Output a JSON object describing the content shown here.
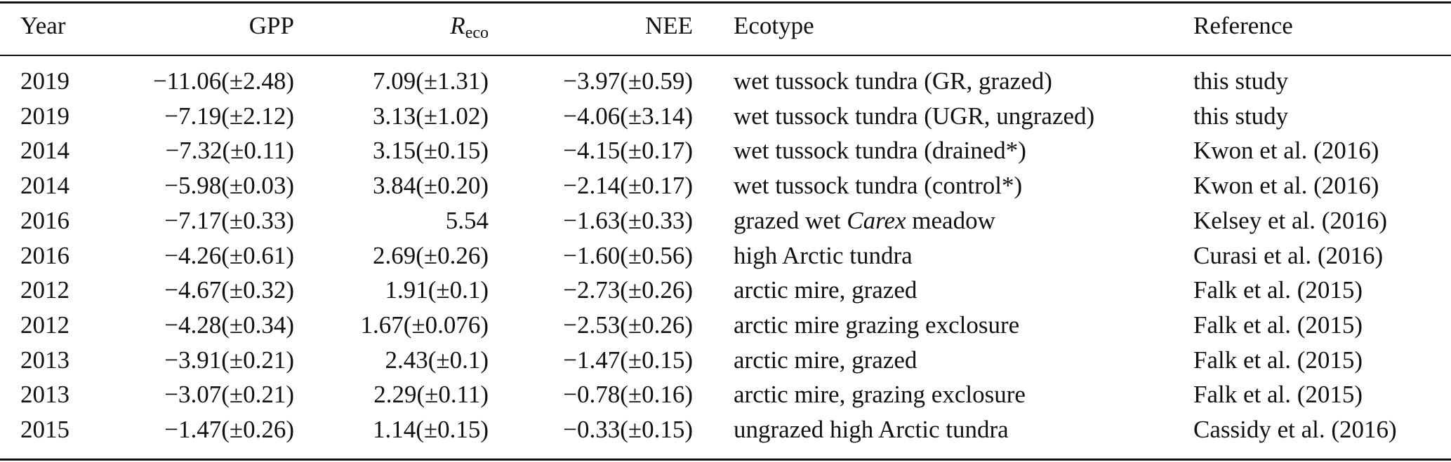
{
  "table": {
    "header": [
      "Year",
      "GPP",
      {
        "italic": "R",
        "sub": "eco"
      },
      "NEE",
      "Ecotype",
      "Reference"
    ],
    "rows": [
      [
        "2019",
        "−11.06(±2.48)",
        "7.09(±1.31)",
        "−3.97(±0.59)",
        "wet tussock tundra (GR, grazed)",
        "this study"
      ],
      [
        "2019",
        "−7.19(±2.12)",
        "3.13(±1.02)",
        "−4.06(±3.14)",
        "wet tussock tundra (UGR, ungrazed)",
        "this study"
      ],
      [
        "2014",
        "−7.32(±0.11)",
        "3.15(±0.15)",
        "−4.15(±0.17)",
        "wet tussock tundra (drained*)",
        "Kwon et al. (2016)"
      ],
      [
        "2014",
        "−5.98(±0.03)",
        "3.84(±0.20)",
        "−2.14(±0.17)",
        "wet tussock tundra (control*)",
        "Kwon et al. (2016)"
      ],
      [
        "2016",
        "−7.17(±0.33)",
        "5.54",
        "−1.63(±0.33)",
        {
          "plain": "grazed wet ",
          "italic": "Carex",
          "rest": " meadow"
        },
        "Kelsey et al. (2016)"
      ],
      [
        "2016",
        "−4.26(±0.61)",
        "2.69(±0.26)",
        "−1.60(±0.56)",
        "high Arctic tundra",
        "Curasi et al. (2016)"
      ],
      [
        "2012",
        "−4.67(±0.32)",
        "1.91(±0.1)",
        "−2.73(±0.26)",
        "arctic mire, grazed",
        "Falk et al. (2015)"
      ],
      [
        "2012",
        "−4.28(±0.34)",
        "1.67(±0.076)",
        "−2.53(±0.26)",
        "arctic mire grazing exclosure",
        "Falk et al. (2015)"
      ],
      [
        "2013",
        "−3.91(±0.21)",
        "2.43(±0.1)",
        "−1.47(±0.15)",
        "arctic mire, grazed",
        "Falk et al. (2015)"
      ],
      [
        "2013",
        "−3.07(±0.21)",
        "2.29(±0.11)",
        "−0.78(±0.16)",
        "arctic mire, grazing exclosure",
        "Falk et al. (2015)"
      ],
      [
        "2015",
        "−1.47(±0.26)",
        "1.14(±0.15)",
        "−0.33(±0.15)",
        "ungrazed high Arctic tundra",
        "Cassidy et al. (2016)"
      ]
    ]
  }
}
